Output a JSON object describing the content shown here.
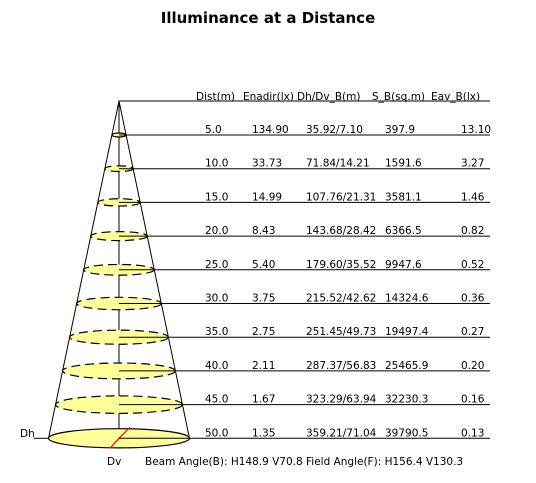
{
  "title": "Illuminance at a Distance",
  "headers": [
    "Dist(m)",
    "Enadir(lx)",
    "Dh/Dv_B(m)",
    "S_B(sq.m)",
    "Eav_B(lx)"
  ],
  "rows": [
    {
      "dist": "5.0",
      "enadir": "134.90",
      "dhdv": "35.92/7.10",
      "sb": "397.9",
      "eav": "13.10"
    },
    {
      "dist": "10.0",
      "enadir": "33.73",
      "dhdv": "71.84/14.21",
      "sb": "1591.6",
      "eav": "3.27"
    },
    {
      "dist": "15.0",
      "enadir": "14.99",
      "dhdv": "107.76/21.31",
      "sb": "3581.1",
      "eav": "1.46"
    },
    {
      "dist": "20.0",
      "enadir": "8.43",
      "dhdv": "143.68/28.42",
      "sb": "6366.5",
      "eav": "0.82"
    },
    {
      "dist": "25.0",
      "enadir": "5.40",
      "dhdv": "179.60/35.52",
      "sb": "9947.6",
      "eav": "0.52"
    },
    {
      "dist": "30.0",
      "enadir": "3.75",
      "dhdv": "215.52/42.62",
      "sb": "14324.6",
      "eav": "0.36"
    },
    {
      "dist": "35.0",
      "enadir": "2.75",
      "dhdv": "251.45/49.73",
      "sb": "19497.4",
      "eav": "0.27"
    },
    {
      "dist": "40.0",
      "enadir": "2.11",
      "dhdv": "287.37/56.83",
      "sb": "25465.9",
      "eav": "0.20"
    },
    {
      "dist": "45.0",
      "enadir": "1.67",
      "dhdv": "323.29/63.94",
      "sb": "32230.3",
      "eav": "0.16"
    },
    {
      "dist": "50.0",
      "enadir": "1.35",
      "dhdv": "359.21/71.04",
      "sb": "39790.5",
      "eav": "0.13"
    }
  ],
  "dh_label": "Dh",
  "dv_label": "Dv",
  "footer": "Beam Angle(B): H148.9 V70.8  Field Angle(F): H156.4 V130.3",
  "colors": {
    "ellipse_fill": "#ffff99",
    "ellipse_stroke": "#000000",
    "dv_marker": "#ff0000",
    "line": "#000000"
  }
}
